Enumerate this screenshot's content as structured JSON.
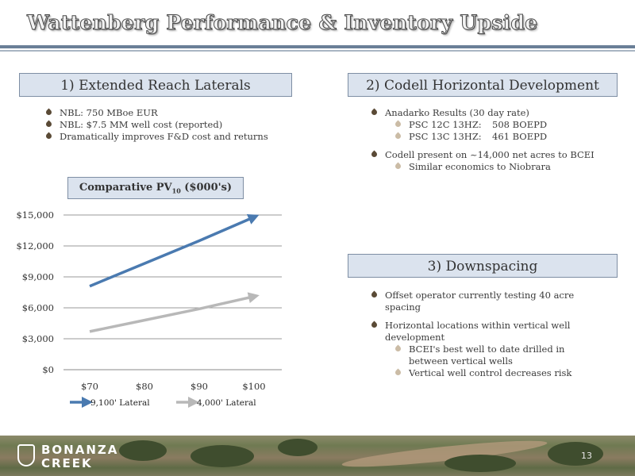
{
  "title": "Wattenberg Performance & Inventory Upside",
  "section1": {
    "header": "1) Extended Reach Laterals",
    "bullets": [
      "NBL: 750 MBoe EUR",
      "NBL: $7.5 MM well cost (reported)",
      "Dramatically improves F&D cost and returns"
    ]
  },
  "section2": {
    "header": "2) Codell Horizontal Development",
    "bullet1": "Anadarko Results (30 day rate)",
    "sub1": [
      {
        "name": "PSC 12C 13HZ:",
        "value": "508 BOEPD"
      },
      {
        "name": "PSC 13C 13HZ:",
        "value": "461 BOEPD"
      }
    ],
    "bullet2": "Codell present on ~14,000 net acres to BCEI",
    "sub2": "Similar economics to Niobrara"
  },
  "section3": {
    "header": "3) Downspacing",
    "bullet1": "Offset operator currently testing 40 acre spacing",
    "bullet2": "Horizontal locations within vertical well development",
    "subs": [
      "BCEI's best well to date drilled in between vertical wells",
      "Vertical well control decreases risk"
    ]
  },
  "pv_label": {
    "main": "Comparative PV",
    "sub": "10",
    "tail": " ($000's)"
  },
  "chart_data": {
    "type": "line",
    "categories": [
      "$70",
      "$80",
      "$90",
      "$100"
    ],
    "x": [
      70,
      80,
      90,
      100
    ],
    "ylim": [
      0,
      15000
    ],
    "yticks": [
      "$0",
      "$3,000",
      "$6,000",
      "$9,000",
      "$12,000",
      "$15,000"
    ],
    "grid": true,
    "legend_position": "bottom",
    "series": [
      {
        "name": "9,100' Lateral",
        "color": "#4a7ab0",
        "values": [
          8100,
          10300,
          12500,
          14800
        ]
      },
      {
        "name": "4,000' Lateral",
        "color": "#b8b8b8",
        "values": [
          3700,
          4800,
          5900,
          7100
        ]
      }
    ]
  },
  "footer": {
    "logo_line1": "BONANZA",
    "logo_line2": "CREEK",
    "page": "13"
  }
}
